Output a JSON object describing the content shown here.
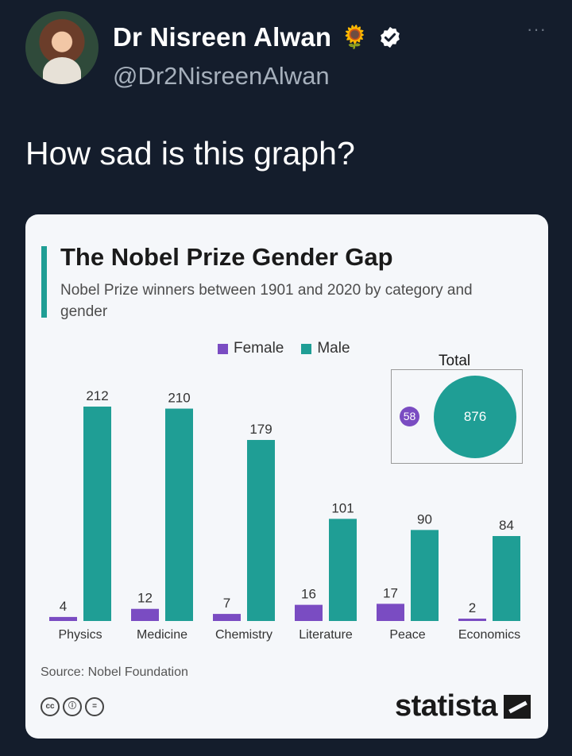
{
  "tweet": {
    "display_name": "Dr Nisreen Alwan",
    "name_emoji": "🌻",
    "handle": "@Dr2NisreenAlwan",
    "more_label": "···",
    "text": "How sad is this graph?"
  },
  "card": {
    "source": "Source: Nobel Foundation",
    "brand": "statista",
    "license_icons": [
      "cc",
      "ⓘ",
      "="
    ],
    "total_label": "Total",
    "total_female": "58",
    "total_male": "876"
  },
  "colors": {
    "female": "#7a4cc2",
    "male": "#1f9e95"
  },
  "chart_data": {
    "type": "bar",
    "title": "The Nobel Prize Gender Gap",
    "subtitle": "Nobel Prize winners between 1901 and 2020 by category and gender",
    "categories": [
      "Physics",
      "Medicine",
      "Chemistry",
      "Literature",
      "Peace",
      "Economics"
    ],
    "series": [
      {
        "name": "Female",
        "values": [
          4,
          12,
          7,
          16,
          17,
          2
        ]
      },
      {
        "name": "Male",
        "values": [
          212,
          210,
          179,
          101,
          90,
          84
        ]
      }
    ],
    "ylim": [
      0,
      220
    ],
    "legend": "top",
    "grid": false,
    "xlabel": "",
    "ylabel": ""
  }
}
